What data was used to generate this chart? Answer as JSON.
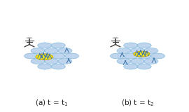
{
  "bg_color": "#ffffff",
  "ellipse_color": "#a8c8e8",
  "ellipse_edge": "#6aaad4",
  "yellow_color": "#ffee00",
  "yellow_edge": "#ccaa00",
  "tower_color": "#404040",
  "signal_color": "#4477aa",
  "arc_color": "#999999",
  "caption_color": "#222222",
  "caption_fontsize": 7.5
}
